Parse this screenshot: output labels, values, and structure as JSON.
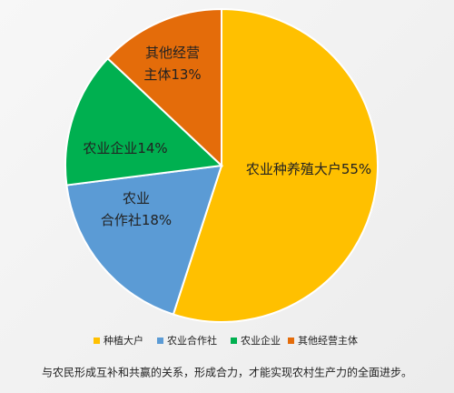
{
  "chart_data": {
    "type": "pie",
    "categories": [
      "种植大户",
      "农业合作社",
      "农业企业",
      "其他经营主体"
    ],
    "values": [
      55,
      18,
      14,
      13
    ],
    "value_labels": [
      "农业种养殖大户55%",
      "农业\n合作社18%",
      "农业企业14%",
      "其他经营\n主体13%"
    ],
    "colors": [
      "#FFC000",
      "#5B9BD5",
      "#00B050",
      "#E46C0A"
    ],
    "caption": "与农民形成互补和共赢的关系，形成合力，才能实现农村生产力的全面进步。"
  }
}
